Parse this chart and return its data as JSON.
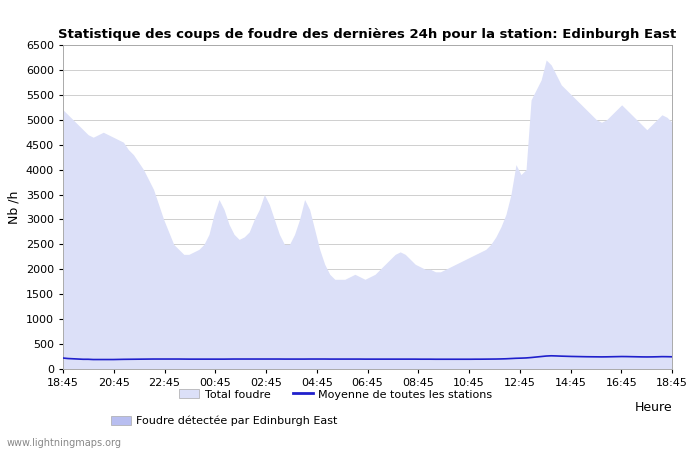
{
  "title": "Statistique des coups de foudre des dernières 24h pour la station: Edinburgh East",
  "ylabel": "Nb /h",
  "ylim": [
    0,
    6500
  ],
  "yticks": [
    0,
    500,
    1000,
    1500,
    2000,
    2500,
    3000,
    3500,
    4000,
    4500,
    5000,
    5500,
    6000,
    6500
  ],
  "xtick_labels": [
    "18:45",
    "20:45",
    "22:45",
    "00:45",
    "02:45",
    "04:45",
    "06:45",
    "08:45",
    "10:45",
    "12:45",
    "14:45",
    "16:45",
    "18:45"
  ],
  "heure_label": "Heure",
  "watermark": "www.lightningmaps.org",
  "legend": [
    "Total foudre",
    "Moyenne de toutes les stations",
    "Foudre détectée par Edinburgh East"
  ],
  "total_color": "#dce0f8",
  "detected_color": "#b8bef0",
  "mean_color": "#2020cc",
  "background_color": "#ffffff",
  "grid_color": "#c8c8c8",
  "total_values": [
    5200,
    5100,
    5000,
    4900,
    4800,
    4700,
    4650,
    4700,
    4750,
    4700,
    4650,
    4600,
    4550,
    4400,
    4300,
    4150,
    4000,
    3800,
    3600,
    3300,
    3000,
    2750,
    2500,
    2400,
    2300,
    2300,
    2350,
    2400,
    2500,
    2700,
    3100,
    3400,
    3200,
    2900,
    2700,
    2600,
    2650,
    2750,
    3000,
    3200,
    3500,
    3300,
    3000,
    2700,
    2500,
    2500,
    2700,
    3000,
    3400,
    3200,
    2800,
    2400,
    2100,
    1900,
    1800,
    1800,
    1800,
    1850,
    1900,
    1850,
    1800,
    1850,
    1900,
    2000,
    2100,
    2200,
    2300,
    2350,
    2300,
    2200,
    2100,
    2050,
    2000,
    2000,
    1950,
    1950,
    2000,
    2050,
    2100,
    2150,
    2200,
    2250,
    2300,
    2350,
    2400,
    2500,
    2650,
    2850,
    3100,
    3500,
    4100,
    3900,
    4000,
    5400,
    5600,
    5800,
    6200,
    6100,
    5900,
    5700,
    5600,
    5500,
    5400,
    5300,
    5200,
    5100,
    5000,
    4950,
    5000,
    5100,
    5200,
    5300,
    5200,
    5100,
    5000,
    4900,
    4800,
    4900,
    5000,
    5100,
    5050,
    4950
  ],
  "mean_values": [
    220,
    210,
    205,
    200,
    195,
    195,
    190,
    190,
    190,
    190,
    190,
    192,
    194,
    195,
    196,
    197,
    198,
    199,
    200,
    200,
    200,
    200,
    200,
    200,
    199,
    198,
    198,
    198,
    198,
    198,
    198,
    198,
    198,
    199,
    200,
    200,
    200,
    200,
    200,
    200,
    200,
    200,
    200,
    200,
    199,
    199,
    199,
    199,
    199,
    200,
    200,
    200,
    200,
    199,
    199,
    199,
    199,
    199,
    199,
    199,
    198,
    198,
    198,
    198,
    198,
    198,
    198,
    198,
    198,
    198,
    198,
    197,
    197,
    197,
    196,
    196,
    196,
    196,
    196,
    196,
    196,
    196,
    197,
    197,
    198,
    199,
    200,
    202,
    205,
    210,
    215,
    218,
    222,
    230,
    240,
    250,
    260,
    265,
    262,
    258,
    255,
    252,
    250,
    248,
    246,
    245,
    244,
    243,
    244,
    246,
    248,
    250,
    249,
    247,
    245,
    243,
    242,
    243,
    245,
    248,
    247,
    245
  ]
}
